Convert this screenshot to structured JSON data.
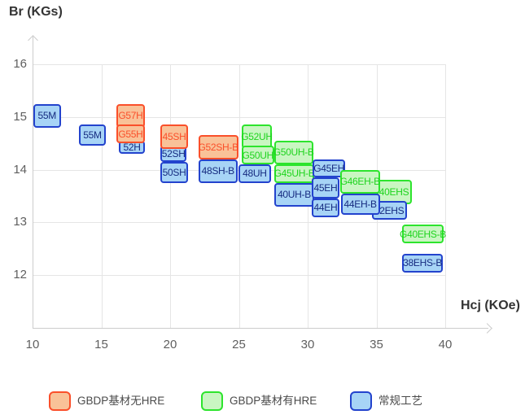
{
  "chart_data": {
    "type": "scatter",
    "variant": "labeled-range-boxes",
    "title": "",
    "xlabel": "Hcj (KOe)",
    "ylabel": "Br (KGs)",
    "x_ticks": [
      10,
      15,
      20,
      25,
      30,
      35,
      40
    ],
    "y_ticks": [
      16,
      15,
      14,
      13,
      12
    ],
    "xlim": [
      10,
      41.5
    ],
    "ylim": [
      11.45,
      16.5
    ],
    "grid": true,
    "legend_position": "bottom",
    "boxes": [
      {
        "label": "55M",
        "category": "conventional",
        "hcj": [
          10.05,
          12.05
        ],
        "br": [
          14.8,
          15.25
        ]
      },
      {
        "label": "55M",
        "category": "conventional",
        "hcj": [
          13.35,
          15.35
        ],
        "br": [
          14.45,
          14.85
        ]
      },
      {
        "label": "52H",
        "category": "conventional",
        "hcj": [
          16.3,
          18.15
        ],
        "br": [
          14.3,
          14.55
        ]
      },
      {
        "label": "G57H",
        "category": "gbdp-no-hre",
        "hcj": [
          16.1,
          18.15
        ],
        "br": [
          14.8,
          15.25
        ]
      },
      {
        "label": "G55H",
        "category": "gbdp-no-hre",
        "hcj": [
          16.1,
          18.15
        ],
        "br": [
          14.5,
          14.85
        ]
      },
      {
        "label": "52SH",
        "category": "conventional",
        "hcj": [
          19.3,
          21.2
        ],
        "br": [
          14.15,
          14.45
        ]
      },
      {
        "label": "50SH",
        "category": "conventional",
        "hcj": [
          19.3,
          21.3
        ],
        "br": [
          13.75,
          14.15
        ]
      },
      {
        "label": "45SH",
        "category": "gbdp-no-hre",
        "hcj": [
          19.3,
          21.3
        ],
        "br": [
          14.4,
          14.85
        ]
      },
      {
        "label": "48SH-B",
        "category": "conventional",
        "hcj": [
          22.05,
          24.9
        ],
        "br": [
          13.75,
          14.2
        ]
      },
      {
        "label": "G52SH-B",
        "category": "gbdp-no-hre",
        "hcj": [
          22.05,
          24.95
        ],
        "br": [
          14.2,
          14.65
        ]
      },
      {
        "label": "48UH",
        "category": "conventional",
        "hcj": [
          24.95,
          27.35
        ],
        "br": [
          13.75,
          14.1
        ]
      },
      {
        "label": "G52UH",
        "category": "gbdp-hre",
        "hcj": [
          25.2,
          27.4
        ],
        "br": [
          14.4,
          14.85
        ]
      },
      {
        "label": "G50UH",
        "category": "gbdp-hre",
        "hcj": [
          25.2,
          27.55
        ],
        "br": [
          14.1,
          14.45
        ]
      },
      {
        "label": "40UH-B",
        "category": "conventional",
        "hcj": [
          27.6,
          30.45
        ],
        "br": [
          13.3,
          13.75
        ]
      },
      {
        "label": "G50UH-B",
        "category": "gbdp-hre",
        "hcj": [
          27.55,
          30.4
        ],
        "br": [
          14.1,
          14.55
        ]
      },
      {
        "label": "G45UH-B",
        "category": "gbdp-hre",
        "hcj": [
          27.6,
          30.45
        ],
        "br": [
          13.75,
          14.1
        ]
      },
      {
        "label": "G45EH",
        "category": "conventional",
        "hcj": [
          30.35,
          32.75
        ],
        "br": [
          13.85,
          14.2
        ]
      },
      {
        "label": "45EH",
        "category": "conventional",
        "hcj": [
          30.3,
          32.3
        ],
        "br": [
          13.45,
          13.85
        ]
      },
      {
        "label": "44EH",
        "category": "conventional",
        "hcj": [
          30.3,
          32.3
        ],
        "br": [
          13.1,
          13.45
        ]
      },
      {
        "label": "40EHS",
        "category": "gbdp-hre",
        "hcj": [
          35.0,
          37.55
        ],
        "br": [
          13.35,
          13.8
        ]
      },
      {
        "label": "G46EH-B",
        "category": "gbdp-hre",
        "hcj": [
          32.35,
          35.25
        ],
        "br": [
          13.55,
          14.0
        ]
      },
      {
        "label": "42EHS",
        "category": "conventional",
        "hcj": [
          34.65,
          37.2
        ],
        "br": [
          13.05,
          13.4
        ]
      },
      {
        "label": "44EH-B",
        "category": "conventional",
        "hcj": [
          32.4,
          35.25
        ],
        "br": [
          13.15,
          13.55
        ]
      },
      {
        "label": "G40EHS-B",
        "category": "gbdp-hre",
        "hcj": [
          36.85,
          39.9
        ],
        "br": [
          12.6,
          12.95
        ]
      },
      {
        "label": "38EHS-B",
        "category": "conventional",
        "hcj": [
          36.85,
          39.85
        ],
        "br": [
          12.05,
          12.4
        ]
      }
    ]
  },
  "categories": {
    "gbdp-no-hre": {
      "legend_label": "GBDP基材无HRE",
      "fill": "#f9c298",
      "border": "#fa4f2a",
      "text": "#fa4f2a"
    },
    "gbdp-hre": {
      "legend_label": "GBDP基材有HRE",
      "fill": "#c9f6c2",
      "border": "#2de42d",
      "text": "#1fd41f"
    },
    "conventional": {
      "legend_label": "常规工艺",
      "fill": "#a7d4f6",
      "border": "#2343cd",
      "text": "#162b80"
    }
  },
  "legend": [
    {
      "category": "gbdp-no-hre"
    },
    {
      "category": "gbdp-hre"
    },
    {
      "category": "conventional"
    }
  ]
}
